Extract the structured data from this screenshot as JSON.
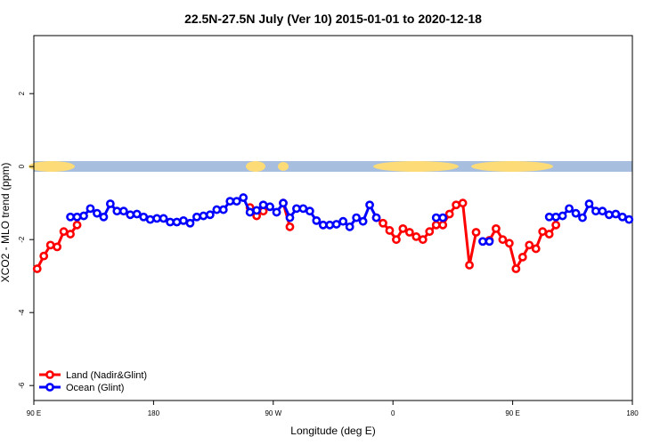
{
  "chart_data": {
    "type": "line",
    "title": "22.5N-27.5N July (Ver 10)   2015-01-01 to 2020-12-18",
    "xlabel": "Longitude (deg E)",
    "ylabel": "XCO2 - MLO trend (ppm)",
    "xlim": [
      90,
      540
    ],
    "ylim": [
      -6.41,
      3.59
    ],
    "xticks": [
      {
        "value": 90,
        "label": "90 E"
      },
      180,
      {
        "value": 270,
        "label": "90 W"
      },
      {
        "value": 360,
        "label": "0"
      },
      {
        "value": 450,
        "label": "90 E"
      },
      {
        "value": 540,
        "label": "180"
      }
    ],
    "yticks": [
      -6,
      -4,
      -2,
      0,
      2
    ],
    "legend": "bottomleft",
    "series": [
      {
        "name": "Land (Nadir&Glint)",
        "color": "#ff0000",
        "x": [
          92.5,
          97.5,
          102.5,
          107.5,
          112.5,
          117.5,
          122.5,
          127.5,
          252.5,
          257.5,
          262.5,
          267.5,
          277.5,
          282.5,
          287.5,
          347.5,
          352.5,
          357.5,
          362.5,
          367.5,
          372.5,
          377.5,
          382.5,
          387.5,
          392.5,
          397.5,
          402.5,
          407.5,
          412.5,
          417.5,
          422.5,
          427.5,
          432.5,
          437.5,
          442.5,
          447.5,
          452.5,
          457.5,
          462.5,
          467.5,
          472.5,
          477.5,
          482.5
        ],
        "values": [
          -2.8,
          -2.45,
          -2.15,
          -2.2,
          -1.78,
          -1.85,
          -1.6,
          null,
          -1.12,
          -1.35,
          -1.22,
          null,
          -1.0,
          -1.65,
          null,
          -1.4,
          -1.55,
          -1.75,
          -2.0,
          -1.7,
          -1.8,
          -1.92,
          -2.0,
          -1.78,
          -1.6,
          -1.6,
          -1.3,
          -1.05,
          -1.0,
          -2.7,
          -1.8,
          null,
          -2.02,
          -1.7,
          -2.0,
          -2.1,
          -2.8,
          -2.48,
          -2.15,
          -2.25,
          -1.78,
          -1.85,
          -1.6
        ]
      },
      {
        "name": "Ocean (Glint)",
        "color": "#0000ff",
        "x": [
          117.5,
          122.5,
          127.5,
          132.5,
          137.5,
          142.5,
          147.5,
          152.5,
          157.5,
          162.5,
          167.5,
          172.5,
          177.5,
          182.5,
          187.5,
          192.5,
          197.5,
          202.5,
          207.5,
          212.5,
          217.5,
          222.5,
          227.5,
          232.5,
          237.5,
          242.5,
          247.5,
          252.5,
          257.5,
          262.5,
          267.5,
          272.5,
          277.5,
          282.5,
          287.5,
          292.5,
          297.5,
          302.5,
          307.5,
          312.5,
          317.5,
          322.5,
          327.5,
          332.5,
          337.5,
          342.5,
          347.5,
          352.5,
          392.5,
          397.5,
          402.5,
          427.5,
          432.5,
          437.5,
          477.5,
          482.5,
          487.5,
          492.5,
          497.5,
          502.5,
          507.5,
          512.5,
          517.5,
          522.5,
          527.5,
          532.5,
          537.5
        ],
        "values": [
          -1.38,
          -1.38,
          -1.35,
          -1.15,
          -1.28,
          -1.38,
          -1.02,
          -1.22,
          -1.22,
          -1.32,
          -1.3,
          -1.38,
          -1.45,
          -1.42,
          -1.42,
          -1.52,
          -1.52,
          -1.48,
          -1.55,
          -1.38,
          -1.35,
          -1.32,
          -1.18,
          -1.18,
          -0.95,
          -0.95,
          -0.85,
          -1.25,
          -1.2,
          -1.05,
          -1.1,
          -1.25,
          -1.0,
          -1.4,
          -1.15,
          -1.15,
          -1.22,
          -1.48,
          -1.6,
          -1.6,
          -1.58,
          -1.5,
          -1.65,
          -1.4,
          -1.5,
          -1.05,
          -1.4,
          null,
          -1.4,
          -1.4,
          null,
          -2.05,
          -2.05,
          null,
          -1.38,
          -1.38,
          -1.35,
          -1.15,
          -1.28,
          -1.4,
          -1.02,
          -1.22,
          -1.22,
          -1.32,
          -1.3,
          -1.38,
          -1.45
        ]
      }
    ]
  }
}
